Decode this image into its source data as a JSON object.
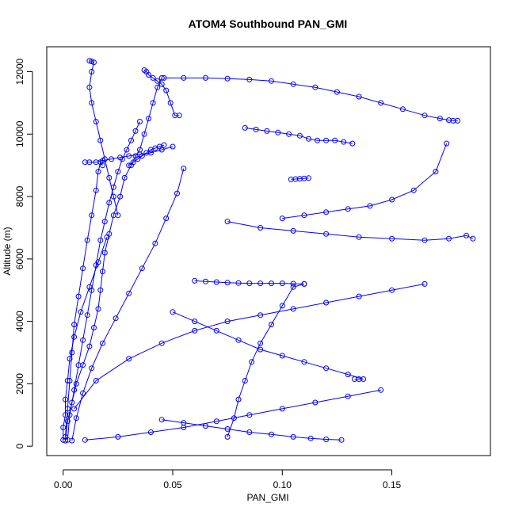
{
  "chart_data": {
    "type": "line",
    "title": "ATOM4 Southbound PAN_GMI",
    "xlabel": "PAN_GMI",
    "ylabel": "Altitude (m)",
    "xlim": [
      -0.0075,
      0.195
    ],
    "ylim": [
      -300,
      12800
    ],
    "x_ticks": [
      0.0,
      0.05,
      0.1,
      0.15
    ],
    "x_tick_labels": [
      "0.00",
      "0.05",
      "0.10",
      "0.15"
    ],
    "y_ticks": [
      0,
      2000,
      4000,
      6000,
      8000,
      10000,
      12000
    ],
    "y_tick_labels": [
      "0",
      "2000",
      "4000",
      "6000",
      "8000",
      "10000",
      "12000"
    ],
    "grid": false,
    "marker": "open-circle",
    "color": "#0000ff",
    "series": [
      {
        "x": [
          0.001,
          0.002,
          0.004,
          0.006,
          0.009,
          0.012,
          0.014,
          0.016,
          0.017,
          0.018,
          0.019,
          0.021,
          0.023,
          0.026,
          0.028,
          0.031,
          0.033,
          0.035,
          0.037,
          0.039,
          0.041,
          0.043,
          0.045
        ],
        "y": [
          180,
          800,
          1400,
          2000,
          2600,
          3200,
          3800,
          4400,
          5000,
          5600,
          6200,
          6800,
          7400,
          8000,
          8600,
          9000,
          9300,
          9500,
          10000,
          10500,
          11000,
          11500,
          11800
        ]
      },
      {
        "x": [
          0.002,
          0.003,
          0.005,
          0.007,
          0.009,
          0.011,
          0.013,
          0.015,
          0.017,
          0.019,
          0.021,
          0.023,
          0.025,
          0.027,
          0.029,
          0.031,
          0.033,
          0.035
        ],
        "y": [
          200,
          1000,
          1800,
          2600,
          3400,
          4200,
          5000,
          5800,
          6600,
          7200,
          7800,
          8300,
          8800,
          9200,
          9500,
          9800,
          10100,
          10400
        ]
      },
      {
        "x": [
          0.004,
          0.006,
          0.009,
          0.013,
          0.018,
          0.024,
          0.03,
          0.036,
          0.042,
          0.047,
          0.052,
          0.055
        ],
        "y": [
          180,
          900,
          1700,
          2500,
          3300,
          4100,
          4900,
          5700,
          6500,
          7300,
          8100,
          8900
        ]
      },
      {
        "x": [
          0.001,
          0.002,
          0.003,
          0.004,
          0.005,
          0.007,
          0.009,
          0.011,
          0.013,
          0.015,
          0.016,
          0.017,
          0.018
        ],
        "y": [
          300,
          1200,
          2100,
          3000,
          3900,
          4800,
          5700,
          6600,
          7400,
          8200,
          8800,
          9100,
          9000
        ]
      },
      {
        "x": [
          0.012,
          0.013,
          0.014,
          0.013,
          0.012,
          0.013,
          0.015,
          0.017,
          0.019,
          0.021,
          0.023,
          0.025
        ],
        "y": [
          12350,
          12330,
          12300,
          12000,
          11500,
          11000,
          10400,
          9800,
          9200,
          8600,
          8000,
          7400
        ]
      },
      {
        "x": [
          0.037,
          0.038,
          0.039,
          0.041,
          0.043,
          0.045,
          0.047,
          0.049,
          0.051,
          0.053
        ],
        "y": [
          12050,
          12000,
          11900,
          11800,
          11700,
          11600,
          11400,
          11000,
          10600,
          10600
        ]
      },
      {
        "x": [
          0.046,
          0.055,
          0.065,
          0.075,
          0.085,
          0.095,
          0.105,
          0.115,
          0.125,
          0.135,
          0.145,
          0.155,
          0.165,
          0.172,
          0.176,
          0.178,
          0.18
        ],
        "y": [
          11800,
          11800,
          11800,
          11780,
          11750,
          11700,
          11600,
          11500,
          11350,
          11200,
          11000,
          10800,
          10600,
          10500,
          10450,
          10430,
          10430
        ]
      },
      {
        "x": [
          0.175,
          0.17,
          0.16,
          0.15,
          0.14,
          0.13,
          0.12,
          0.11,
          0.1
        ],
        "y": [
          9700,
          8800,
          8200,
          7900,
          7700,
          7600,
          7500,
          7400,
          7300
        ]
      },
      {
        "x": [
          0.083,
          0.088,
          0.093,
          0.098,
          0.103,
          0.108,
          0.112,
          0.116,
          0.12,
          0.124,
          0.128,
          0.132
        ],
        "y": [
          10200,
          10150,
          10100,
          10050,
          10000,
          9950,
          9850,
          9800,
          9800,
          9800,
          9750,
          9700
        ]
      },
      {
        "x": [
          0.104,
          0.106,
          0.108,
          0.11,
          0.112
        ],
        "y": [
          8550,
          8560,
          8570,
          8580,
          8590
        ]
      },
      {
        "x": [
          0.187,
          0.184,
          0.176,
          0.165,
          0.15,
          0.135,
          0.12,
          0.105,
          0.09,
          0.075
        ],
        "y": [
          6650,
          6750,
          6650,
          6600,
          6650,
          6700,
          6800,
          6900,
          7000,
          7200
        ]
      },
      {
        "x": [
          0.165,
          0.15,
          0.135,
          0.12,
          0.105,
          0.09,
          0.075,
          0.06,
          0.045,
          0.03,
          0.015,
          0.005
        ],
        "y": [
          5200,
          5000,
          4800,
          4600,
          4400,
          4200,
          4000,
          3700,
          3300,
          2800,
          2100,
          1200
        ]
      },
      {
        "x": [
          0.133,
          0.135,
          0.137,
          0.13,
          0.12,
          0.11,
          0.1,
          0.09,
          0.08,
          0.07,
          0.06,
          0.05
        ],
        "y": [
          2150,
          2150,
          2150,
          2300,
          2500,
          2700,
          2900,
          3100,
          3400,
          3700,
          4000,
          4300
        ]
      },
      {
        "x": [
          0.145,
          0.13,
          0.115,
          0.1,
          0.085,
          0.07,
          0.055,
          0.04,
          0.025,
          0.01
        ],
        "y": [
          1800,
          1600,
          1400,
          1200,
          1000,
          800,
          600,
          450,
          300,
          200
        ]
      },
      {
        "x": [
          0.127,
          0.12,
          0.113,
          0.105,
          0.095,
          0.085,
          0.075,
          0.065,
          0.055,
          0.045
        ],
        "y": [
          200,
          220,
          250,
          300,
          380,
          450,
          550,
          650,
          750,
          850
        ]
      },
      {
        "x": [
          0.075,
          0.078,
          0.08,
          0.083,
          0.086,
          0.09,
          0.095,
          0.1,
          0.105,
          0.11
        ],
        "y": [
          300,
          900,
          1500,
          2100,
          2700,
          3300,
          3900,
          4500,
          5100,
          5200
        ]
      },
      {
        "x": [
          0.06,
          0.065,
          0.07,
          0.075,
          0.08,
          0.085,
          0.09,
          0.095,
          0.1,
          0.105,
          0.11
        ],
        "y": [
          5300,
          5280,
          5260,
          5240,
          5230,
          5220,
          5220,
          5220,
          5220,
          5210,
          5200
        ]
      },
      {
        "x": [
          0.01,
          0.012,
          0.015,
          0.018,
          0.022,
          0.026,
          0.03,
          0.035,
          0.04,
          0.045,
          0.05
        ],
        "y": [
          9100,
          9100,
          9100,
          9150,
          9200,
          9250,
          9300,
          9350,
          9400,
          9500,
          9600
        ]
      },
      {
        "x": [
          0.0,
          0.0,
          0.001,
          0.001,
          0.002,
          0.003,
          0.005,
          0.008,
          0.012,
          0.016,
          0.02
        ],
        "y": [
          200,
          600,
          1000,
          1500,
          2100,
          2800,
          3500,
          4300,
          5100,
          5900,
          6700
        ]
      },
      {
        "x": [
          0.03,
          0.032,
          0.034,
          0.036,
          0.038,
          0.04,
          0.042,
          0.044,
          0.046
        ],
        "y": [
          9000,
          9100,
          9200,
          9300,
          9400,
          9500,
          9550,
          9600,
          9650
        ]
      }
    ]
  }
}
